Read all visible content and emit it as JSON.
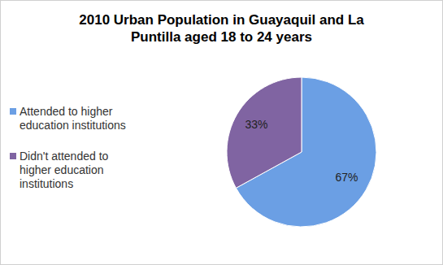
{
  "chart_data": {
    "type": "pie",
    "title": "2010 Urban Population in Guayaquil and La Puntilla aged 18 to 24 years",
    "categories": [
      "Attended to higher education institutions",
      "Didn't attended to higher education institutions"
    ],
    "values": [
      67,
      33
    ],
    "value_labels": [
      "67%",
      "33%"
    ],
    "colors": [
      "#6b9fe4",
      "#8064a2"
    ],
    "data_labels": true,
    "legend": "left"
  }
}
